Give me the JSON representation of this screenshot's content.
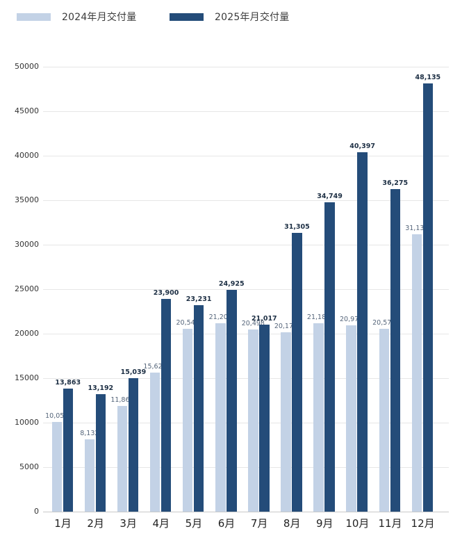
{
  "legend": {
    "items": [
      {
        "label": "2024年月交付量",
        "color": "#c3d2e6"
      },
      {
        "label": "2025年月交付量",
        "color": "#244c79"
      }
    ]
  },
  "chart_data": {
    "type": "bar",
    "title": "",
    "xlabel": "",
    "ylabel": "",
    "categories": [
      "1月",
      "2月",
      "3月",
      "4月",
      "5月",
      "6月",
      "7月",
      "8月",
      "9月",
      "10月",
      "11月",
      "12月"
    ],
    "series": [
      {
        "name": "2024年月交付量",
        "color": "#c3d2e6",
        "values": [
          10055,
          8132,
          11866,
          15620,
          20544,
          21209,
          20498,
          20176,
          21181,
          20976,
          20575,
          31138
        ],
        "labels": [
          "10,055",
          "8,132",
          "11,866",
          "15,620",
          "20,544",
          "21,209",
          "20,498",
          "20,176",
          "21,181",
          "20,976",
          "20,575",
          "31,138"
        ]
      },
      {
        "name": "2025年月交付量",
        "color": "#244c79",
        "values": [
          13863,
          13192,
          15039,
          23900,
          23231,
          24925,
          21017,
          31305,
          34749,
          40397,
          36275,
          48135
        ],
        "labels": [
          "13,863",
          "13,192",
          "15,039",
          "23,900",
          "23,231",
          "24,925",
          "21,017",
          "31,305",
          "34,749",
          "40,397",
          "36,275",
          "48,135"
        ]
      }
    ],
    "yticks": [
      "0",
      "5000",
      "10000",
      "15000",
      "20000",
      "25000",
      "30000",
      "35000",
      "40000",
      "45000",
      "50000"
    ],
    "ylim": [
      0,
      50000
    ],
    "grid": true,
    "legend_position": "top-left"
  }
}
